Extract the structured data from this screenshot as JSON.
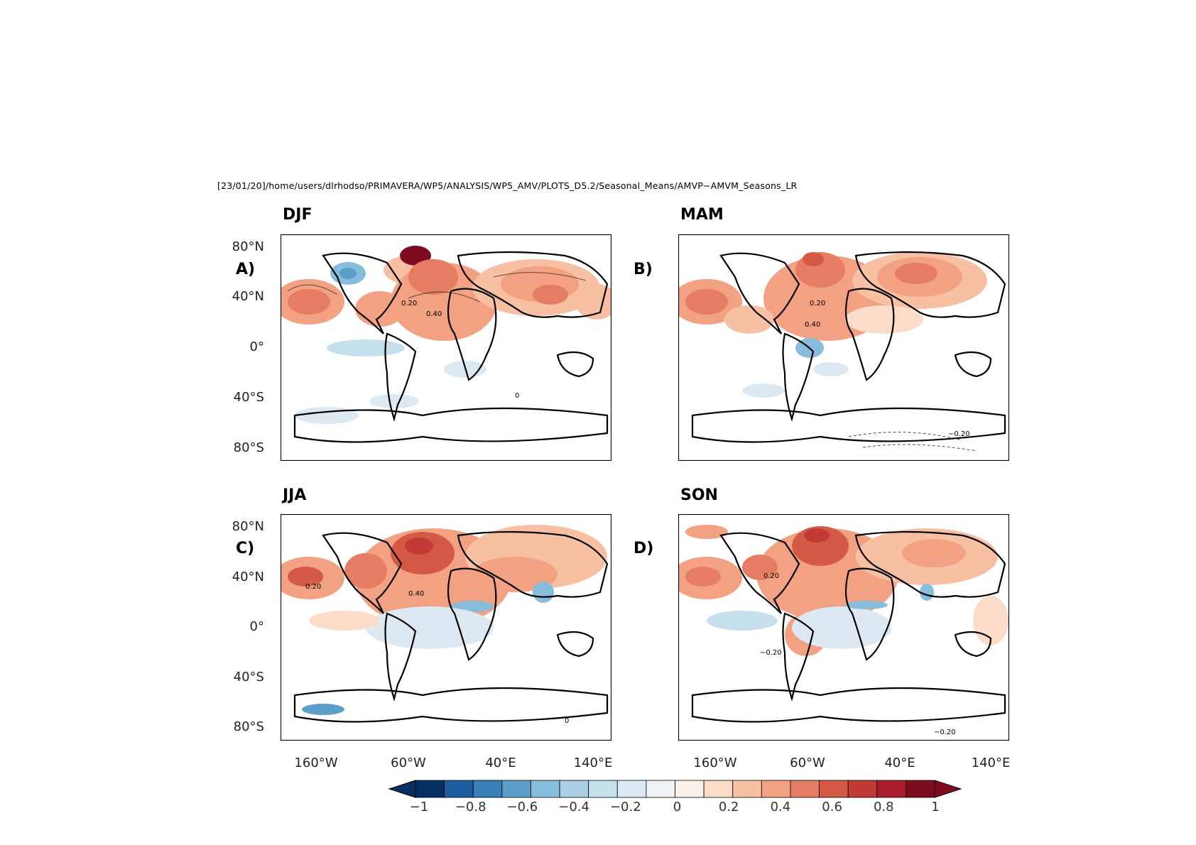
{
  "file_path": "[23/01/20]/home/users/dlrhodso/PRIMAVERA/WP5/ANALYSIS/WP5_AMV/PLOTS_D5.2/Seasonal_Means/AMVP−AMVM_Seasons_LR",
  "chart_data": {
    "type": "heatmap",
    "panels": [
      {
        "season": "DJF",
        "letter": "A)"
      },
      {
        "season": "MAM",
        "letter": "B)"
      },
      {
        "season": "JJA",
        "letter": "C)"
      },
      {
        "season": "SON",
        "letter": "D)"
      }
    ],
    "lat_ticks": [
      "80°N",
      "40°N",
      "0°",
      "40°S",
      "80°S"
    ],
    "lon_ticks": [
      "160°W",
      "60°W",
      "40°E",
      "140°E"
    ],
    "contour_labels": [
      "0.20",
      "0.40",
      "0",
      "−0.20"
    ],
    "colorbar": {
      "levels": [
        -1,
        -0.9,
        -0.8,
        -0.7,
        -0.6,
        -0.5,
        -0.4,
        -0.3,
        -0.2,
        -0.1,
        0,
        0.1,
        0.2,
        0.3,
        0.4,
        0.5,
        0.6,
        0.7,
        0.8,
        0.9,
        1
      ],
      "tick_labels": [
        "−1",
        "−0.8",
        "−0.6",
        "−0.4",
        "−0.2",
        "0",
        "0.2",
        "0.4",
        "0.6",
        "0.8",
        "1"
      ],
      "colors": [
        "#053061",
        "#1c5c9f",
        "#3a7fba",
        "#5b9fc9",
        "#87bcdb",
        "#a9cfe5",
        "#c6dfed",
        "#dce9f2",
        "#eef2f6",
        "#faf0ea",
        "#fbdcc9",
        "#f7c0a3",
        "#f2a182",
        "#e57d62",
        "#d55a46",
        "#c23a35",
        "#a91d2d",
        "#7f0b21"
      ],
      "extend": "both"
    }
  }
}
